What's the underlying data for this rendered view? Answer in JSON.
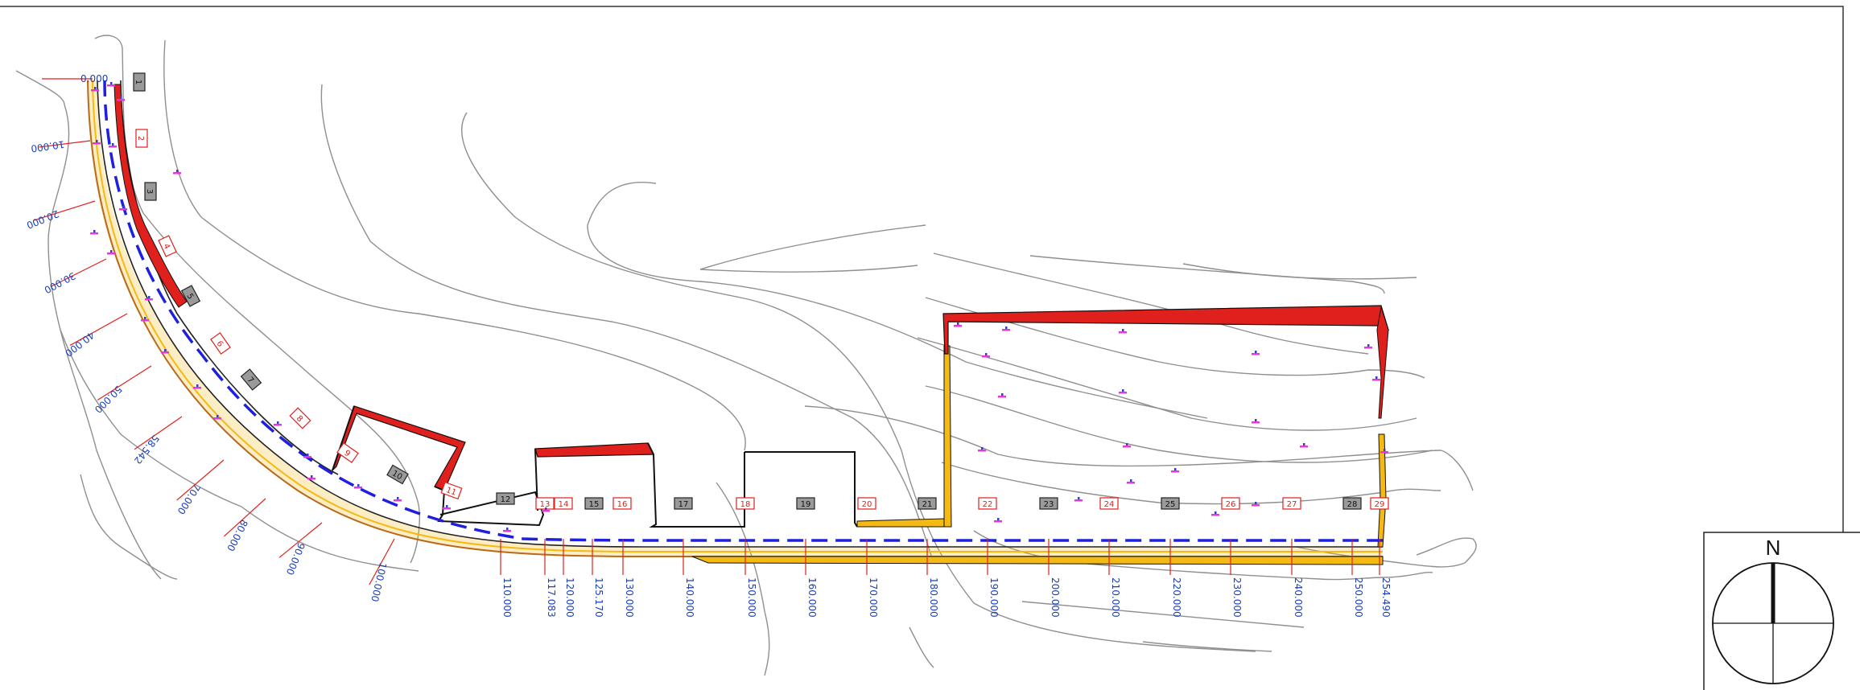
{
  "drawing": {
    "north_label": "N",
    "colors": {
      "alignment": "#1f1fe0",
      "cut_fill": "#e0201c",
      "embankment_fill": "#f5b914",
      "station_text": "#1c3fb8",
      "station_tick": "#e0201c",
      "contour": "#8f8f8f",
      "spot_height": "#e03ad8",
      "road_edge": "#b86a1a"
    }
  },
  "stations": [
    {
      "label": "0.000"
    },
    {
      "label": "10.000"
    },
    {
      "label": "20.000"
    },
    {
      "label": "30.000"
    },
    {
      "label": "40.000"
    },
    {
      "label": "50.000"
    },
    {
      "label": "58.542"
    },
    {
      "label": "70.000"
    },
    {
      "label": "80.000"
    },
    {
      "label": "90.000"
    },
    {
      "label": "100.000"
    },
    {
      "label": "110.000"
    },
    {
      "label": "117.083"
    },
    {
      "label": "120.000"
    },
    {
      "label": "125.170"
    },
    {
      "label": "130.000"
    },
    {
      "label": "140.000"
    },
    {
      "label": "150.000"
    },
    {
      "label": "160.000"
    },
    {
      "label": "170.000"
    },
    {
      "label": "180.000"
    },
    {
      "label": "190.000"
    },
    {
      "label": "200.000"
    },
    {
      "label": "210.000"
    },
    {
      "label": "220.000"
    },
    {
      "label": "230.000"
    },
    {
      "label": "240.000"
    },
    {
      "label": "250.000"
    },
    {
      "label": "254.490"
    }
  ],
  "cross_sections": [
    {
      "label": "1",
      "style": "gray"
    },
    {
      "label": "2",
      "style": "red"
    },
    {
      "label": "3",
      "style": "gray"
    },
    {
      "label": "4",
      "style": "red"
    },
    {
      "label": "5",
      "style": "gray"
    },
    {
      "label": "6",
      "style": "red"
    },
    {
      "label": "7",
      "style": "gray"
    },
    {
      "label": "8",
      "style": "red"
    },
    {
      "label": "9",
      "style": "red"
    },
    {
      "label": "10",
      "style": "gray"
    },
    {
      "label": "11",
      "style": "red"
    },
    {
      "label": "12",
      "style": "gray"
    },
    {
      "label": "13",
      "style": "red"
    },
    {
      "label": "14",
      "style": "red"
    },
    {
      "label": "15",
      "style": "gray"
    },
    {
      "label": "16",
      "style": "red"
    },
    {
      "label": "17",
      "style": "gray"
    },
    {
      "label": "18",
      "style": "red"
    },
    {
      "label": "19",
      "style": "gray"
    },
    {
      "label": "20",
      "style": "red"
    },
    {
      "label": "21",
      "style": "gray"
    },
    {
      "label": "22",
      "style": "red"
    },
    {
      "label": "23",
      "style": "gray"
    },
    {
      "label": "24",
      "style": "red"
    },
    {
      "label": "25",
      "style": "gray"
    },
    {
      "label": "26",
      "style": "red"
    },
    {
      "label": "27",
      "style": "red"
    },
    {
      "label": "28",
      "style": "gray"
    },
    {
      "label": "29",
      "style": "red"
    }
  ]
}
